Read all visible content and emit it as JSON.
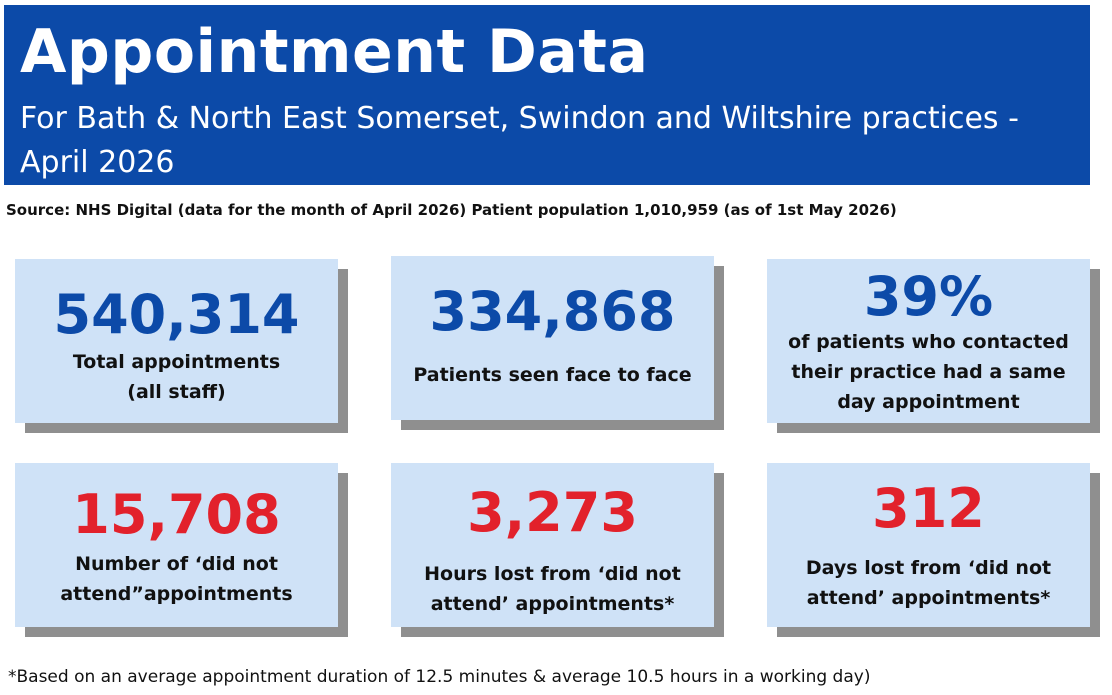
{
  "header": {
    "title": "Appointment Data",
    "subtitle": "For Bath & North East Somerset, Swindon and Wiltshire practices - April 2026"
  },
  "source_line": "Source: NHS Digital (data for the month of April 2026) Patient population  1,010,959 (as of 1st May 2026)",
  "cards": [
    {
      "value": "540,314",
      "label_line1": "Total appointments",
      "label_line2": "(all staff)"
    },
    {
      "value": "334,868",
      "label_line1": "Patients seen face to face"
    },
    {
      "value": "39%",
      "label_line1": "of patients who contacted",
      "label_line2": "their practice had a same",
      "label_line3": "day appointment"
    },
    {
      "value": "15,708",
      "label_line1": "Number of ‘did not",
      "label_line2": "attend”appointments"
    },
    {
      "value": "3,273",
      "label_line1": "Hours lost from ‘did not",
      "label_line2": "attend’ appointments*"
    },
    {
      "value": "312",
      "label_line1": "Days lost from ‘did not",
      "label_line2": "attend’ appointments*"
    }
  ],
  "colors": {
    "header_bg": "#0c4aa8",
    "card_bg": "#cfe2f7",
    "value_blue": "#0c4aa8",
    "value_red": "#e2212b",
    "shadow": "#8f8f8f"
  },
  "footnote": "*Based on an average appointment duration of 12.5 minutes & average 10.5 hours in a working day)"
}
